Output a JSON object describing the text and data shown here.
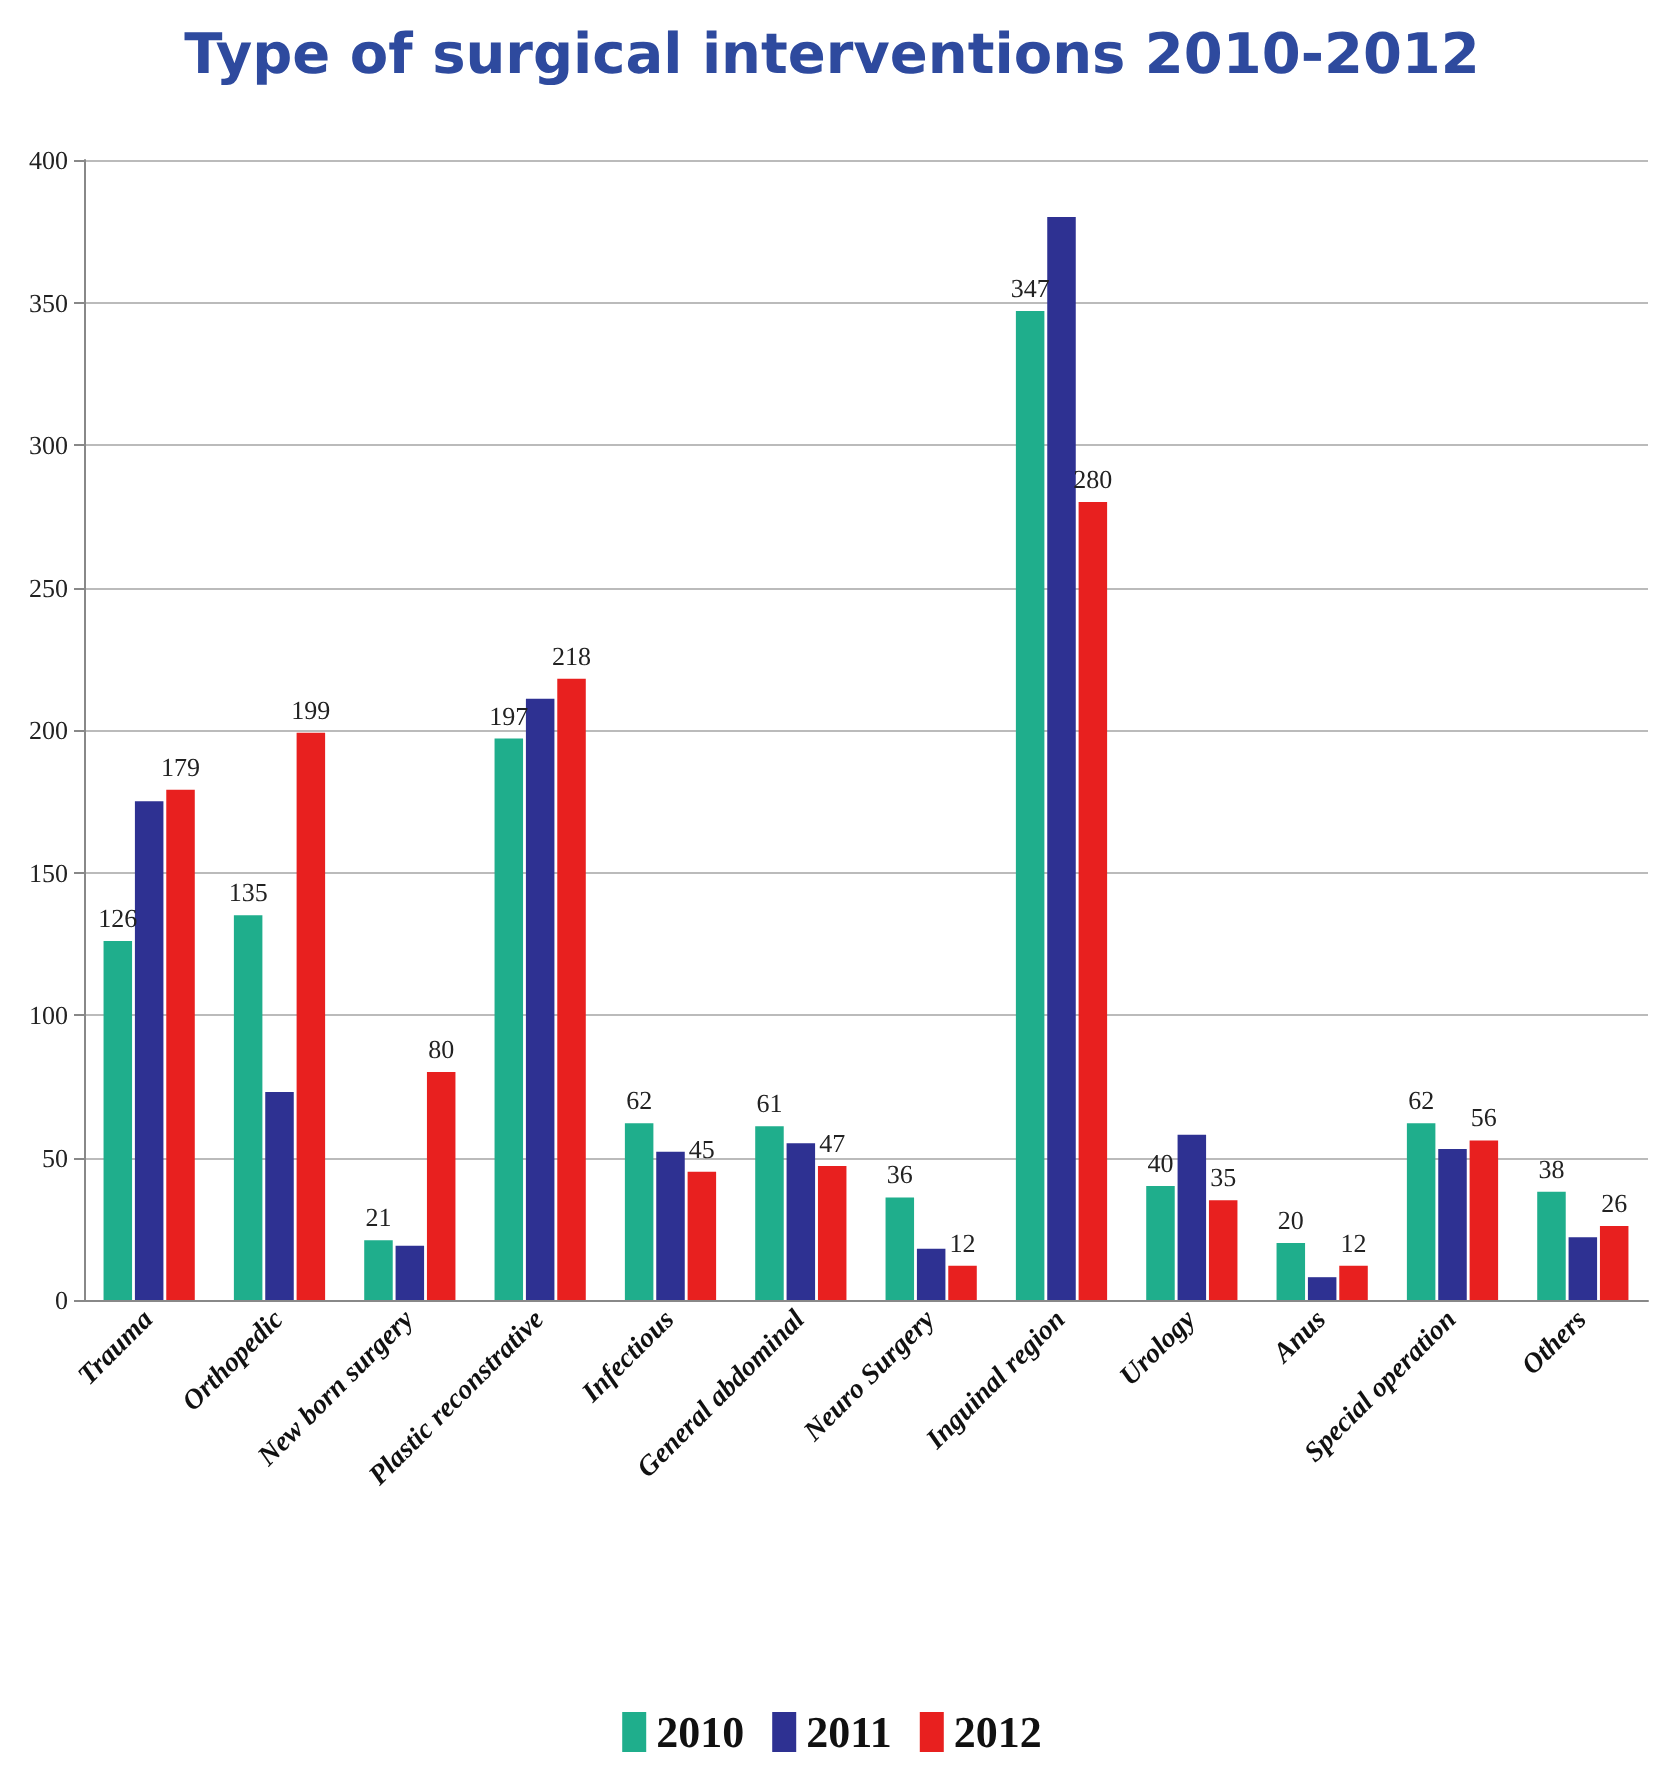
{
  "chart_data": {
    "type": "bar",
    "title": "Type of surgical interventions 2010-2012",
    "categories": [
      "Trauma",
      "Orthopedic",
      "New born surgery",
      "Plastic reconstrative",
      "Infectious",
      "General abdominal",
      "Neuro Surgery",
      "Inguinal region",
      "Urology",
      "Anus",
      "Special operation",
      "Others"
    ],
    "series": [
      {
        "name": "2010",
        "color": "#1fae8c",
        "values": [
          126,
          135,
          21,
          197,
          62,
          61,
          36,
          347,
          40,
          20,
          62,
          38
        ],
        "value_labels": [
          "126",
          "135",
          "21",
          "197",
          "62",
          "61",
          "36",
          "347",
          "40",
          "20",
          "62",
          "38"
        ]
      },
      {
        "name": "2011",
        "color": "#2e3192",
        "values": [
          175,
          73,
          19,
          211,
          52,
          55,
          18,
          380,
          58,
          8,
          53,
          22
        ]
      },
      {
        "name": "2012",
        "color": "#e8201f",
        "values": [
          179,
          199,
          80,
          218,
          45,
          47,
          12,
          280,
          35,
          12,
          56,
          26
        ],
        "value_labels": [
          "179",
          "199",
          "80",
          "218",
          "45",
          "47",
          "12",
          "280",
          "35",
          "12",
          "56",
          "26"
        ]
      }
    ],
    "ylim": [
      0,
      400
    ],
    "yticks": [
      0,
      50,
      100,
      150,
      200,
      250,
      300,
      350,
      400
    ],
    "grid": "y",
    "legend": "bottom"
  }
}
